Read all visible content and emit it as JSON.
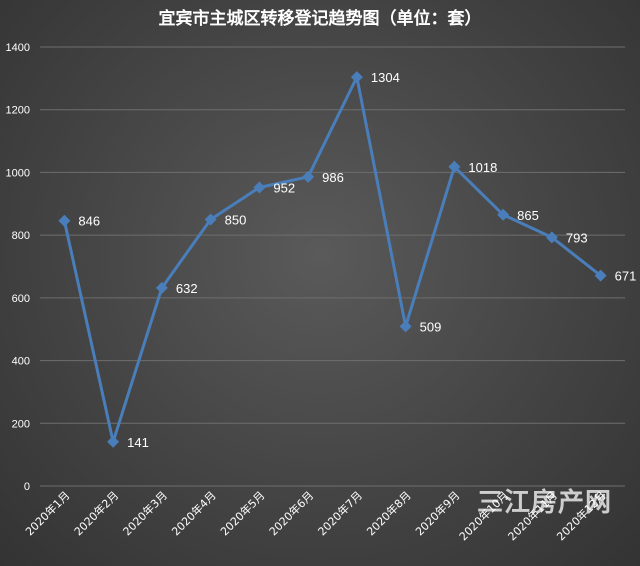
{
  "chart_data": {
    "type": "line",
    "title": "宜宾市主城区转移登记趋势图（单位：套）",
    "categories": [
      "2020年1月",
      "2020年2月",
      "2020年3月",
      "2020年4月",
      "2020年5月",
      "2020年6月",
      "2020年7月",
      "2020年8月",
      "2020年9月",
      "2020年10月",
      "2020年11月",
      "2020年12月"
    ],
    "series": [
      {
        "values": [
          846,
          141,
          632,
          850,
          952,
          986,
          1304,
          509,
          1018,
          865,
          793,
          671
        ]
      }
    ],
    "data_labels": [
      "846",
      "141",
      "632",
      "850",
      "952",
      "986",
      "1304",
      "509",
      "1018",
      "865",
      "793",
      "671"
    ],
    "ylim": [
      0,
      1400
    ],
    "yticks": [
      0,
      200,
      400,
      600,
      800,
      1000,
      1200,
      1400
    ],
    "grid": true,
    "colors": {
      "line": "#4a7ebb",
      "grid": "#6e6e6e",
      "text": "#ffffff"
    }
  },
  "watermark": "三江房产网"
}
